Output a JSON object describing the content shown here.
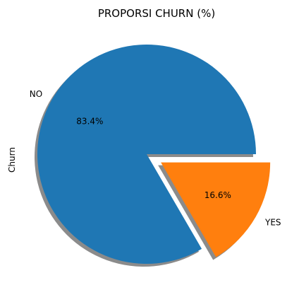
{
  "chart_data": {
    "type": "pie",
    "title": "PROPORSI CHURN (%)",
    "ylabel": "Churn",
    "labels": [
      "NO",
      "YES"
    ],
    "values": [
      83.4,
      16.6
    ],
    "autopct": [
      "83.4%",
      "16.6%"
    ],
    "colors": [
      "#1f77b4",
      "#ff7f0e"
    ],
    "explode": [
      0,
      0.15
    ],
    "shadow": true,
    "legend": "none"
  }
}
